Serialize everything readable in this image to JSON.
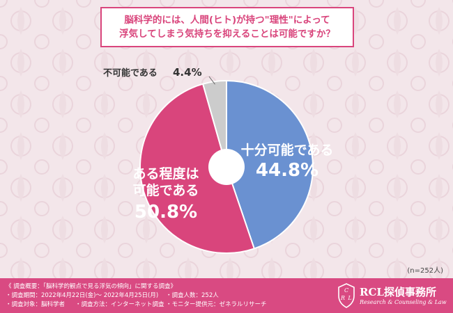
{
  "header": {
    "question_line1": "脳科学的には、人間(ヒト)が持つ\"理性\"によって",
    "question_line2": "浮気してしまう気持ちを抑えることは可能ですか？"
  },
  "chart_data": {
    "type": "pie",
    "slices": [
      {
        "label_line1": "十分可能である",
        "label_line2": "",
        "value": 44.8,
        "value_text": "44.8%",
        "color": "#6a91d1"
      },
      {
        "label_line1": "ある程度は",
        "label_line2": "可能である",
        "value": 50.8,
        "value_text": "50.8%",
        "color": "#d9457c"
      },
      {
        "label_line1": "不可能である",
        "label_line2": "",
        "value": 4.4,
        "value_text": "4.4%",
        "color": "#cccccc"
      }
    ],
    "start": "top",
    "direction": "clockwise",
    "donut_hole": true
  },
  "sample_size": "(n=252人)",
  "footer": {
    "summary": "《 調査概要：「脳科学的観点で見る浮気の傾向」に関する調査》",
    "items": [
      "・調査期間：2022年4月22日(金)～ 2022年4月25日(月)",
      "・調査人数：252人",
      "・調査対象：脳科学者",
      "・調査方法：インターネット調査",
      "・モニター提供元：ゼネラルリサーチ"
    ]
  },
  "brand": {
    "name": "RCL探偵事務所",
    "tagline": "Research & Counseling & Law",
    "crest_letters": [
      "C",
      "R",
      "L"
    ]
  },
  "colors": {
    "accent": "#d9457c",
    "footer_bg": "#d94a82",
    "background": "#f3e6ea"
  }
}
